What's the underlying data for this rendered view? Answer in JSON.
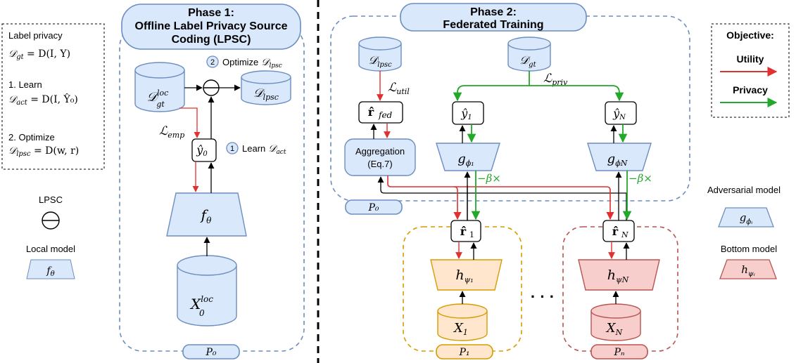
{
  "phase1": {
    "title_line1": "Phase 1:",
    "title_line2": "Offline Label Privacy Source",
    "title_line3": "Coding (LPSC)",
    "party": "P₀",
    "d_gt_loc": "𝒟",
    "d_gt_loc_sup": "loc",
    "d_gt_loc_sub": "gt",
    "d_lpsc": "𝒟",
    "d_lpsc_sub": "lpsc",
    "step2_num": "2",
    "step2_text": "Optimize",
    "step2_sym": "𝒟",
    "step2_sub": "lpsc",
    "step1_num": "1",
    "step1_text": "Learn",
    "step1_sym": "𝒟",
    "step1_sub": "act",
    "loss_emp": "ℒ",
    "loss_emp_sub": "emp",
    "yhat0": "ŷ",
    "yhat0_sub": "0",
    "f_theta": "f",
    "f_theta_sub": "θ",
    "x0_loc": "X",
    "x0_loc_sup": "loc",
    "x0_loc_sub": "0"
  },
  "phase2": {
    "title_line1": "Phase 2:",
    "title_line2": "Federated Training",
    "party0": "P₀",
    "party1": "P₁",
    "partyN": "Pₙ",
    "d_lpsc": "𝒟",
    "d_lpsc_sub": "lpsc",
    "d_gt": "𝒟",
    "d_gt_sub": "gt",
    "loss_util": "ℒ",
    "loss_util_sub": "util",
    "loss_priv": "ℒ",
    "loss_priv_sub": "priv",
    "r_fed": "r̂",
    "r_fed_sub": "fed",
    "aggregation_line1": "Aggregation",
    "aggregation_line2": "(Eq.7)",
    "y1": "ŷ",
    "y1_sub": "1",
    "yN": "ŷ",
    "yN_sub": "N",
    "g1": "g",
    "g1_sub": "ϕ₁",
    "gN": "g",
    "gN_sub": "ϕN",
    "beta1": "−β×",
    "betaN": "−β×",
    "r1": "r̂",
    "r1_sub": "1",
    "rN": "r̂",
    "rN_sub": "N",
    "h1": "h",
    "h1_sub": "ψ₁",
    "hN": "h",
    "hN_sub": "ψN",
    "x1": "X",
    "x1_sub": "1",
    "xN": "X",
    "xN_sub": "N",
    "ellipsis": "· · ·"
  },
  "left_box": {
    "label_privacy": "Label privacy",
    "eq1": "𝒟₉ₜ = D(I, Y)",
    "eq1_lhs": "𝒟",
    "eq1_sub": "gt",
    "eq1_rhs": " = D(I, Y)",
    "learn": "1. Learn",
    "eq2_lhs": "𝒟",
    "eq2_sub": "act",
    "eq2_rhs": " = D(I, Ŷ₀)",
    "optimize": "2. Optimize",
    "eq3_lhs": "𝒟",
    "eq3_sub": "lpsc",
    "eq3_rhs": " = D(w, r)"
  },
  "legend_left": {
    "lpsc_label": "LPSC",
    "local_model_label": "Local model",
    "local_model_sym": "f",
    "local_model_sub": "θ"
  },
  "objective": {
    "title": "Objective:",
    "utility": "Utility",
    "privacy": "Privacy"
  },
  "legend_right": {
    "adversarial_label": "Adversarial model",
    "adversarial_sym": "g",
    "adversarial_sub": "ϕᵢ",
    "bottom_label": "Bottom model",
    "bottom_sym": "h",
    "bottom_sub": "ψᵢ"
  },
  "colors": {
    "blue_fill": "#dae8fc",
    "blue_stroke": "#6c8ebf",
    "orange_fill": "#ffe6cc",
    "orange_stroke": "#d79b00",
    "red_fill": "#f8cecc",
    "red_stroke": "#b85450",
    "utility": "#e03030",
    "privacy": "#22a82a"
  }
}
